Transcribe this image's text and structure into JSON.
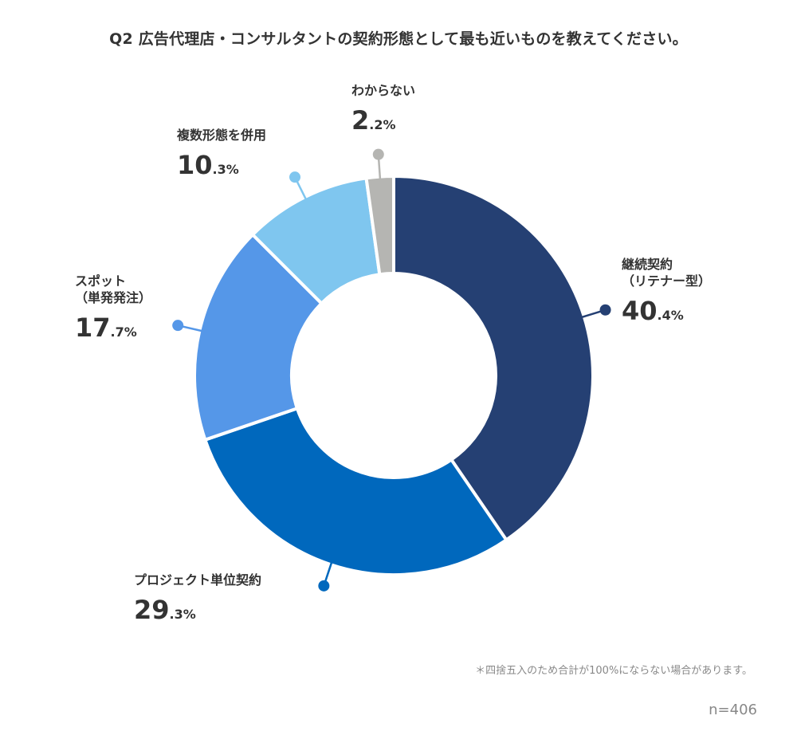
{
  "title": "Q2 広告代理店・コンサルタントの契約形態として最も近いものを教えてください。",
  "note": "＊四捨五入のため合計が100%にならない場合があります。",
  "sample": "n=406",
  "chart_data": {
    "type": "pie",
    "title": "Q2 広告代理店・コンサルタントの契約形態として最も近いものを教えてください。",
    "donut": true,
    "slices": [
      {
        "label": "継続契約（リテナー型）",
        "label_lines": [
          "継続契約",
          "（リテナー型）"
        ],
        "value": 40.4,
        "int": "40",
        "dec": ".4%",
        "color": "#254073"
      },
      {
        "label": "プロジェクト単位契約",
        "label_lines": [
          "プロジェクト単位契約"
        ],
        "value": 29.3,
        "int": "29",
        "dec": ".3%",
        "color": "#0068bd"
      },
      {
        "label": "スポット（単発発注）",
        "label_lines": [
          "スポット",
          "（単発発注）"
        ],
        "value": 17.7,
        "int": "17",
        "dec": ".7%",
        "color": "#5597e8"
      },
      {
        "label": "複数形態を併用",
        "label_lines": [
          "複数形態を併用"
        ],
        "value": 10.3,
        "int": "10",
        "dec": ".3%",
        "color": "#7fc6ef"
      },
      {
        "label": "わからない",
        "label_lines": [
          "わからない"
        ],
        "value": 2.2,
        "int": "2",
        "dec": ".2%",
        "color": "#b5b5b2"
      }
    ]
  }
}
